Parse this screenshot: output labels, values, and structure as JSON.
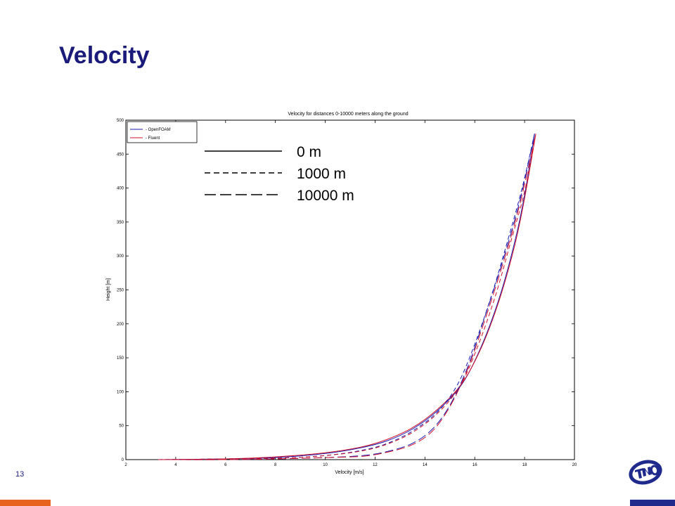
{
  "slide": {
    "title": "Velocity",
    "page_number": "13"
  },
  "colors": {
    "title": "#1a1a7a",
    "openfoam": "#1a1ab0",
    "fluent": "#d0102a",
    "footer_left": "#e8641e",
    "footer_right": "#1f2a8c"
  },
  "logo": {
    "icon": "tno-logo-icon"
  },
  "chart_data": {
    "type": "line",
    "title": "Velocity for distances 0-10000 meters along the ground",
    "xlabel": "Velocity [m/s]",
    "ylabel": "Height [m]",
    "xlim": [
      2,
      20
    ],
    "ylim": [
      0,
      500
    ],
    "xticks": [
      2,
      4,
      6,
      8,
      10,
      12,
      14,
      16,
      18,
      20
    ],
    "yticks": [
      0,
      50,
      100,
      150,
      200,
      250,
      300,
      350,
      400,
      450,
      500
    ],
    "grid": false,
    "legend": {
      "position": "top-left",
      "entries": [
        {
          "label": "- OpenFOAM",
          "color": "#1a1ab0"
        },
        {
          "label": "- Fluent",
          "color": "#d0102a"
        }
      ]
    },
    "annotation_legend": [
      {
        "label": "0 m",
        "style": "solid"
      },
      {
        "label": "1000 m",
        "style": "dashed"
      },
      {
        "label": "10000 m",
        "style": "long-dashed"
      }
    ],
    "series": [
      {
        "solver": "OpenFOAM",
        "distance": "0 m",
        "color": "#1a1ab0",
        "dash": "solid",
        "x": [
          3.3,
          6.0,
          8.0,
          10.0,
          11.5,
          12.5,
          13.5,
          14.5,
          15.5,
          16.3,
          17.0,
          17.6,
          18.0,
          18.4
        ],
        "y": [
          0,
          1,
          3,
          9,
          18,
          28,
          45,
          72,
          112,
          170,
          240,
          320,
          390,
          480
        ]
      },
      {
        "solver": "Fluent",
        "distance": "0 m",
        "color": "#d0102a",
        "dash": "solid",
        "x": [
          3.3,
          6.0,
          8.0,
          10.0,
          11.5,
          12.5,
          13.5,
          14.5,
          15.5,
          16.3,
          17.0,
          17.6,
          18.0,
          18.45
        ],
        "y": [
          0,
          1,
          4,
          10,
          19,
          30,
          47,
          74,
          113,
          168,
          237,
          315,
          385,
          480
        ]
      },
      {
        "solver": "OpenFOAM",
        "distance": "1000 m",
        "color": "#1a1ab0",
        "dash": "dashed",
        "x": [
          3.3,
          6.0,
          8.0,
          10.0,
          11.5,
          12.5,
          13.5,
          14.5,
          15.3,
          16.0,
          16.7,
          17.3,
          17.9,
          18.4
        ],
        "y": [
          0,
          1,
          2,
          6,
          14,
          24,
          42,
          70,
          110,
          170,
          245,
          320,
          400,
          480
        ]
      },
      {
        "solver": "Fluent",
        "distance": "1000 m",
        "color": "#d0102a",
        "dash": "dashed",
        "x": [
          3.3,
          6.0,
          8.0,
          10.0,
          11.5,
          12.5,
          13.5,
          14.5,
          15.4,
          16.1,
          16.8,
          17.4,
          18.0,
          18.45
        ],
        "y": [
          0,
          1,
          2,
          6,
          13,
          23,
          40,
          68,
          108,
          165,
          238,
          315,
          395,
          480
        ]
      },
      {
        "solver": "OpenFOAM",
        "distance": "10000 m",
        "color": "#1a1ab0",
        "dash": "long-dashed",
        "x": [
          3.3,
          6.0,
          8.0,
          10.0,
          11.5,
          12.5,
          13.5,
          14.3,
          15.0,
          15.7,
          16.4,
          17.1,
          17.8,
          18.4
        ],
        "y": [
          0,
          0,
          1,
          3,
          6,
          12,
          24,
          45,
          80,
          135,
          210,
          290,
          380,
          480
        ]
      },
      {
        "solver": "Fluent",
        "distance": "10000 m",
        "color": "#d0102a",
        "dash": "long-dashed",
        "x": [
          3.3,
          6.0,
          8.0,
          10.0,
          11.5,
          12.5,
          13.5,
          14.3,
          15.0,
          15.7,
          16.4,
          17.1,
          17.8,
          18.45
        ],
        "y": [
          0,
          0,
          1,
          3,
          5,
          11,
          22,
          42,
          78,
          132,
          205,
          285,
          375,
          480
        ]
      }
    ]
  }
}
